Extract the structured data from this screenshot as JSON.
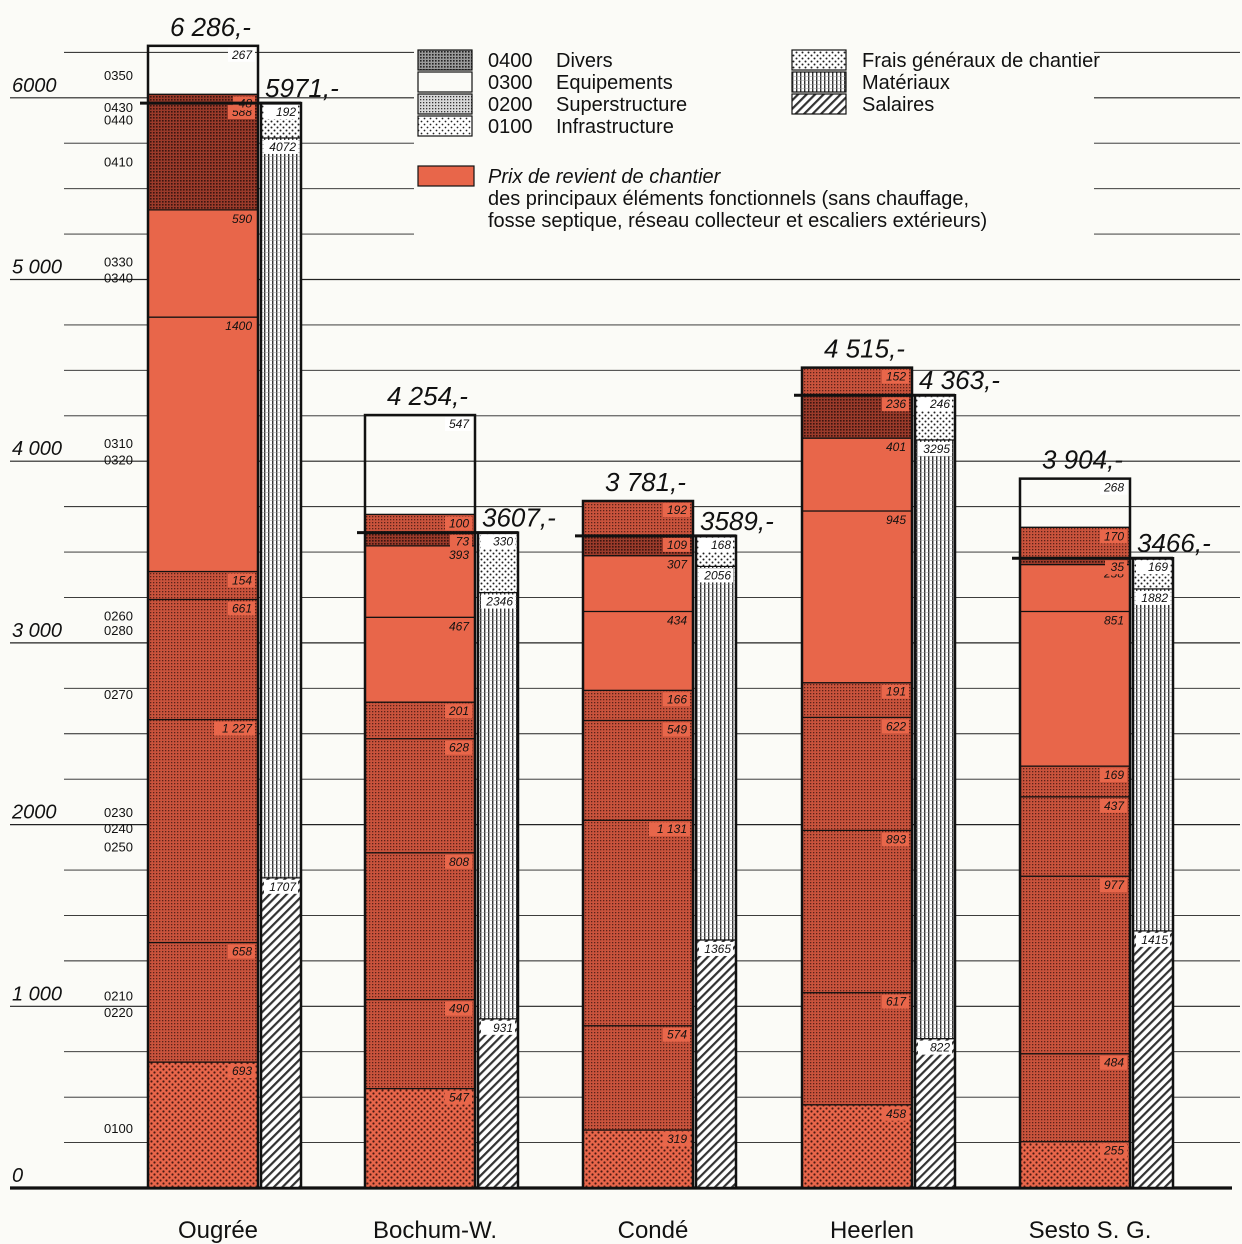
{
  "chart_data": {
    "type": "bar",
    "stacked": true,
    "ylim": [
      0,
      6300
    ],
    "y_ticks": [
      {
        "value": 0,
        "label": "0"
      },
      {
        "value": 1000,
        "label": "1 000"
      },
      {
        "value": 2000,
        "label": "2000"
      },
      {
        "value": 3000,
        "label": "3 000"
      },
      {
        "value": 4000,
        "label": "4 000"
      },
      {
        "value": 5000,
        "label": "5 000"
      },
      {
        "value": 6000,
        "label": "6000"
      }
    ],
    "code_labels": [
      {
        "at": 6125,
        "label": "0350"
      },
      {
        "at": 5950,
        "label": "0430"
      },
      {
        "at": 5880,
        "label": "0440"
      },
      {
        "at": 5650,
        "label": "0410"
      },
      {
        "at": 5100,
        "label": "0330"
      },
      {
        "at": 5010,
        "label": "0340"
      },
      {
        "at": 4100,
        "label": "0310"
      },
      {
        "at": 4010,
        "label": "0320"
      },
      {
        "at": 3150,
        "label": "0260"
      },
      {
        "at": 3070,
        "label": "0280"
      },
      {
        "at": 2720,
        "label": "0270"
      },
      {
        "at": 2070,
        "label": "0230"
      },
      {
        "at": 1980,
        "label": "0240"
      },
      {
        "at": 1880,
        "label": "0250"
      },
      {
        "at": 1060,
        "label": "0210"
      },
      {
        "at": 970,
        "label": "0220"
      },
      {
        "at": 330,
        "label": "0100"
      }
    ],
    "categories": [
      "Ougrée",
      "Bochum-W.",
      "Condé",
      "Heerlen",
      "Sesto S. G."
    ],
    "totals_functional": [
      "6 286,-",
      "4 254,-",
      "3 781,-",
      "4 515,-",
      "3 904,-"
    ],
    "totals_site_cost": [
      "5971,-",
      "3607,-",
      "3589,-",
      "4 363,-",
      "3466,-"
    ],
    "functional_stacks": [
      [
        {
          "value": 693,
          "pattern": "p0100",
          "label": "693"
        },
        {
          "value": 658,
          "pattern": "p0200",
          "label": "658"
        },
        {
          "value": 1227,
          "pattern": "p0200",
          "label": "1 227"
        },
        {
          "value": 661,
          "pattern": "p0200",
          "label": "661"
        },
        {
          "value": 154,
          "pattern": "p0200",
          "label": "154"
        },
        {
          "value": 1400,
          "pattern": "solid",
          "label": "1400"
        },
        {
          "value": 590,
          "pattern": "solid",
          "label": "590"
        },
        {
          "value": 588,
          "pattern": "p0400",
          "label": "588"
        },
        {
          "value": 48,
          "pattern": "p0400",
          "label": "48"
        },
        {
          "value": 267,
          "pattern": "p0300",
          "label": "267"
        }
      ],
      [
        {
          "value": 547,
          "pattern": "p0100",
          "label": "547"
        },
        {
          "value": 490,
          "pattern": "p0200",
          "label": "490"
        },
        {
          "value": 808,
          "pattern": "p0200",
          "label": "808"
        },
        {
          "value": 628,
          "pattern": "p0200",
          "label": "628"
        },
        {
          "value": 201,
          "pattern": "p0200",
          "label": "201"
        },
        {
          "value": 467,
          "pattern": "solid",
          "label": "467"
        },
        {
          "value": 393,
          "pattern": "solid",
          "label": "393"
        },
        {
          "value": 73,
          "pattern": "p0400",
          "label": "73"
        },
        {
          "value": 100,
          "pattern": "p0200",
          "label": "100"
        },
        {
          "value": 547,
          "pattern": "p0300",
          "label": "547"
        }
      ],
      [
        {
          "value": 319,
          "pattern": "p0100",
          "label": "319"
        },
        {
          "value": 574,
          "pattern": "p0200",
          "label": "574"
        },
        {
          "value": 1131,
          "pattern": "p0200",
          "label": "1 131"
        },
        {
          "value": 549,
          "pattern": "p0200",
          "label": "549"
        },
        {
          "value": 166,
          "pattern": "p0200",
          "label": "166"
        },
        {
          "value": 434,
          "pattern": "solid",
          "label": "434"
        },
        {
          "value": 307,
          "pattern": "solid",
          "label": "307"
        },
        {
          "value": 109,
          "pattern": "p0400",
          "label": "109"
        },
        {
          "value": 192,
          "pattern": "p0200",
          "label": "192"
        }
      ],
      [
        {
          "value": 458,
          "pattern": "p0100",
          "label": "458"
        },
        {
          "value": 617,
          "pattern": "p0200",
          "label": "617"
        },
        {
          "value": 893,
          "pattern": "p0200",
          "label": "893"
        },
        {
          "value": 622,
          "pattern": "p0200",
          "label": "622"
        },
        {
          "value": 191,
          "pattern": "p0200",
          "label": "191"
        },
        {
          "value": 945,
          "pattern": "solid",
          "label": "945"
        },
        {
          "value": 401,
          "pattern": "solid",
          "label": "401"
        },
        {
          "value": 236,
          "pattern": "p0400",
          "label": "236"
        },
        {
          "value": 152,
          "pattern": "p0200",
          "label": "152"
        }
      ],
      [
        {
          "value": 255,
          "pattern": "p0100",
          "label": "255"
        },
        {
          "value": 484,
          "pattern": "p0200",
          "label": "484"
        },
        {
          "value": 977,
          "pattern": "p0200",
          "label": "977"
        },
        {
          "value": 437,
          "pattern": "p0200",
          "label": "437"
        },
        {
          "value": 169,
          "pattern": "p0200",
          "label": "169"
        },
        {
          "value": 851,
          "pattern": "solid",
          "label": "851"
        },
        {
          "value": 258,
          "pattern": "solid",
          "label": "258"
        },
        {
          "value": 35,
          "pattern": "p0400",
          "label": "35"
        },
        {
          "value": 170,
          "pattern": "p0200",
          "label": "170"
        },
        {
          "value": 268,
          "pattern": "p0300",
          "label": "268"
        }
      ]
    ],
    "cost_stacks": [
      [
        {
          "value": 1707,
          "pattern": "salaires",
          "label": "1707"
        },
        {
          "value": 4072,
          "pattern": "materiaux",
          "label": "4072"
        },
        {
          "value": 192,
          "pattern": "frais",
          "label": "192"
        }
      ],
      [
        {
          "value": 931,
          "pattern": "salaires",
          "label": "931"
        },
        {
          "value": 2346,
          "pattern": "materiaux",
          "label": "2346"
        },
        {
          "value": 330,
          "pattern": "frais",
          "label": "330"
        }
      ],
      [
        {
          "value": 1365,
          "pattern": "salaires",
          "label": "1365"
        },
        {
          "value": 2056,
          "pattern": "materiaux",
          "label": "2056"
        },
        {
          "value": 168,
          "pattern": "frais",
          "label": "168"
        }
      ],
      [
        {
          "value": 822,
          "pattern": "salaires",
          "label": "822"
        },
        {
          "value": 3295,
          "pattern": "materiaux",
          "label": "3295"
        },
        {
          "value": 246,
          "pattern": "frais",
          "label": "246"
        }
      ],
      [
        {
          "value": 1415,
          "pattern": "salaires",
          "label": "1415"
        },
        {
          "value": 1882,
          "pattern": "materiaux",
          "label": "1882"
        },
        {
          "value": 169,
          "pattern": "frais",
          "label": "169"
        }
      ]
    ],
    "legend_codes": [
      {
        "code": "0400",
        "name": "Divers",
        "pattern": "p0400g"
      },
      {
        "code": "0300",
        "name": "Equipements",
        "pattern": "p0300"
      },
      {
        "code": "0200",
        "name": "Superstructure",
        "pattern": "p0200g"
      },
      {
        "code": "0100",
        "name": "Infrastructure",
        "pattern": "p0100w"
      }
    ],
    "legend_costs": [
      {
        "name": "Frais généraux de chantier",
        "pattern": "frais"
      },
      {
        "name": "Matériaux",
        "pattern": "materiaux"
      },
      {
        "name": "Salaires",
        "pattern": "salaires"
      }
    ],
    "note": {
      "line1": "Prix de revient de chantier",
      "line2": "des principaux éléments fonctionnels (sans chauffage,",
      "line3": "fosse septique, réseau collecteur et escaliers extérieurs)"
    },
    "colors": {
      "accent": "#e8664a",
      "ink": "#111111"
    }
  }
}
